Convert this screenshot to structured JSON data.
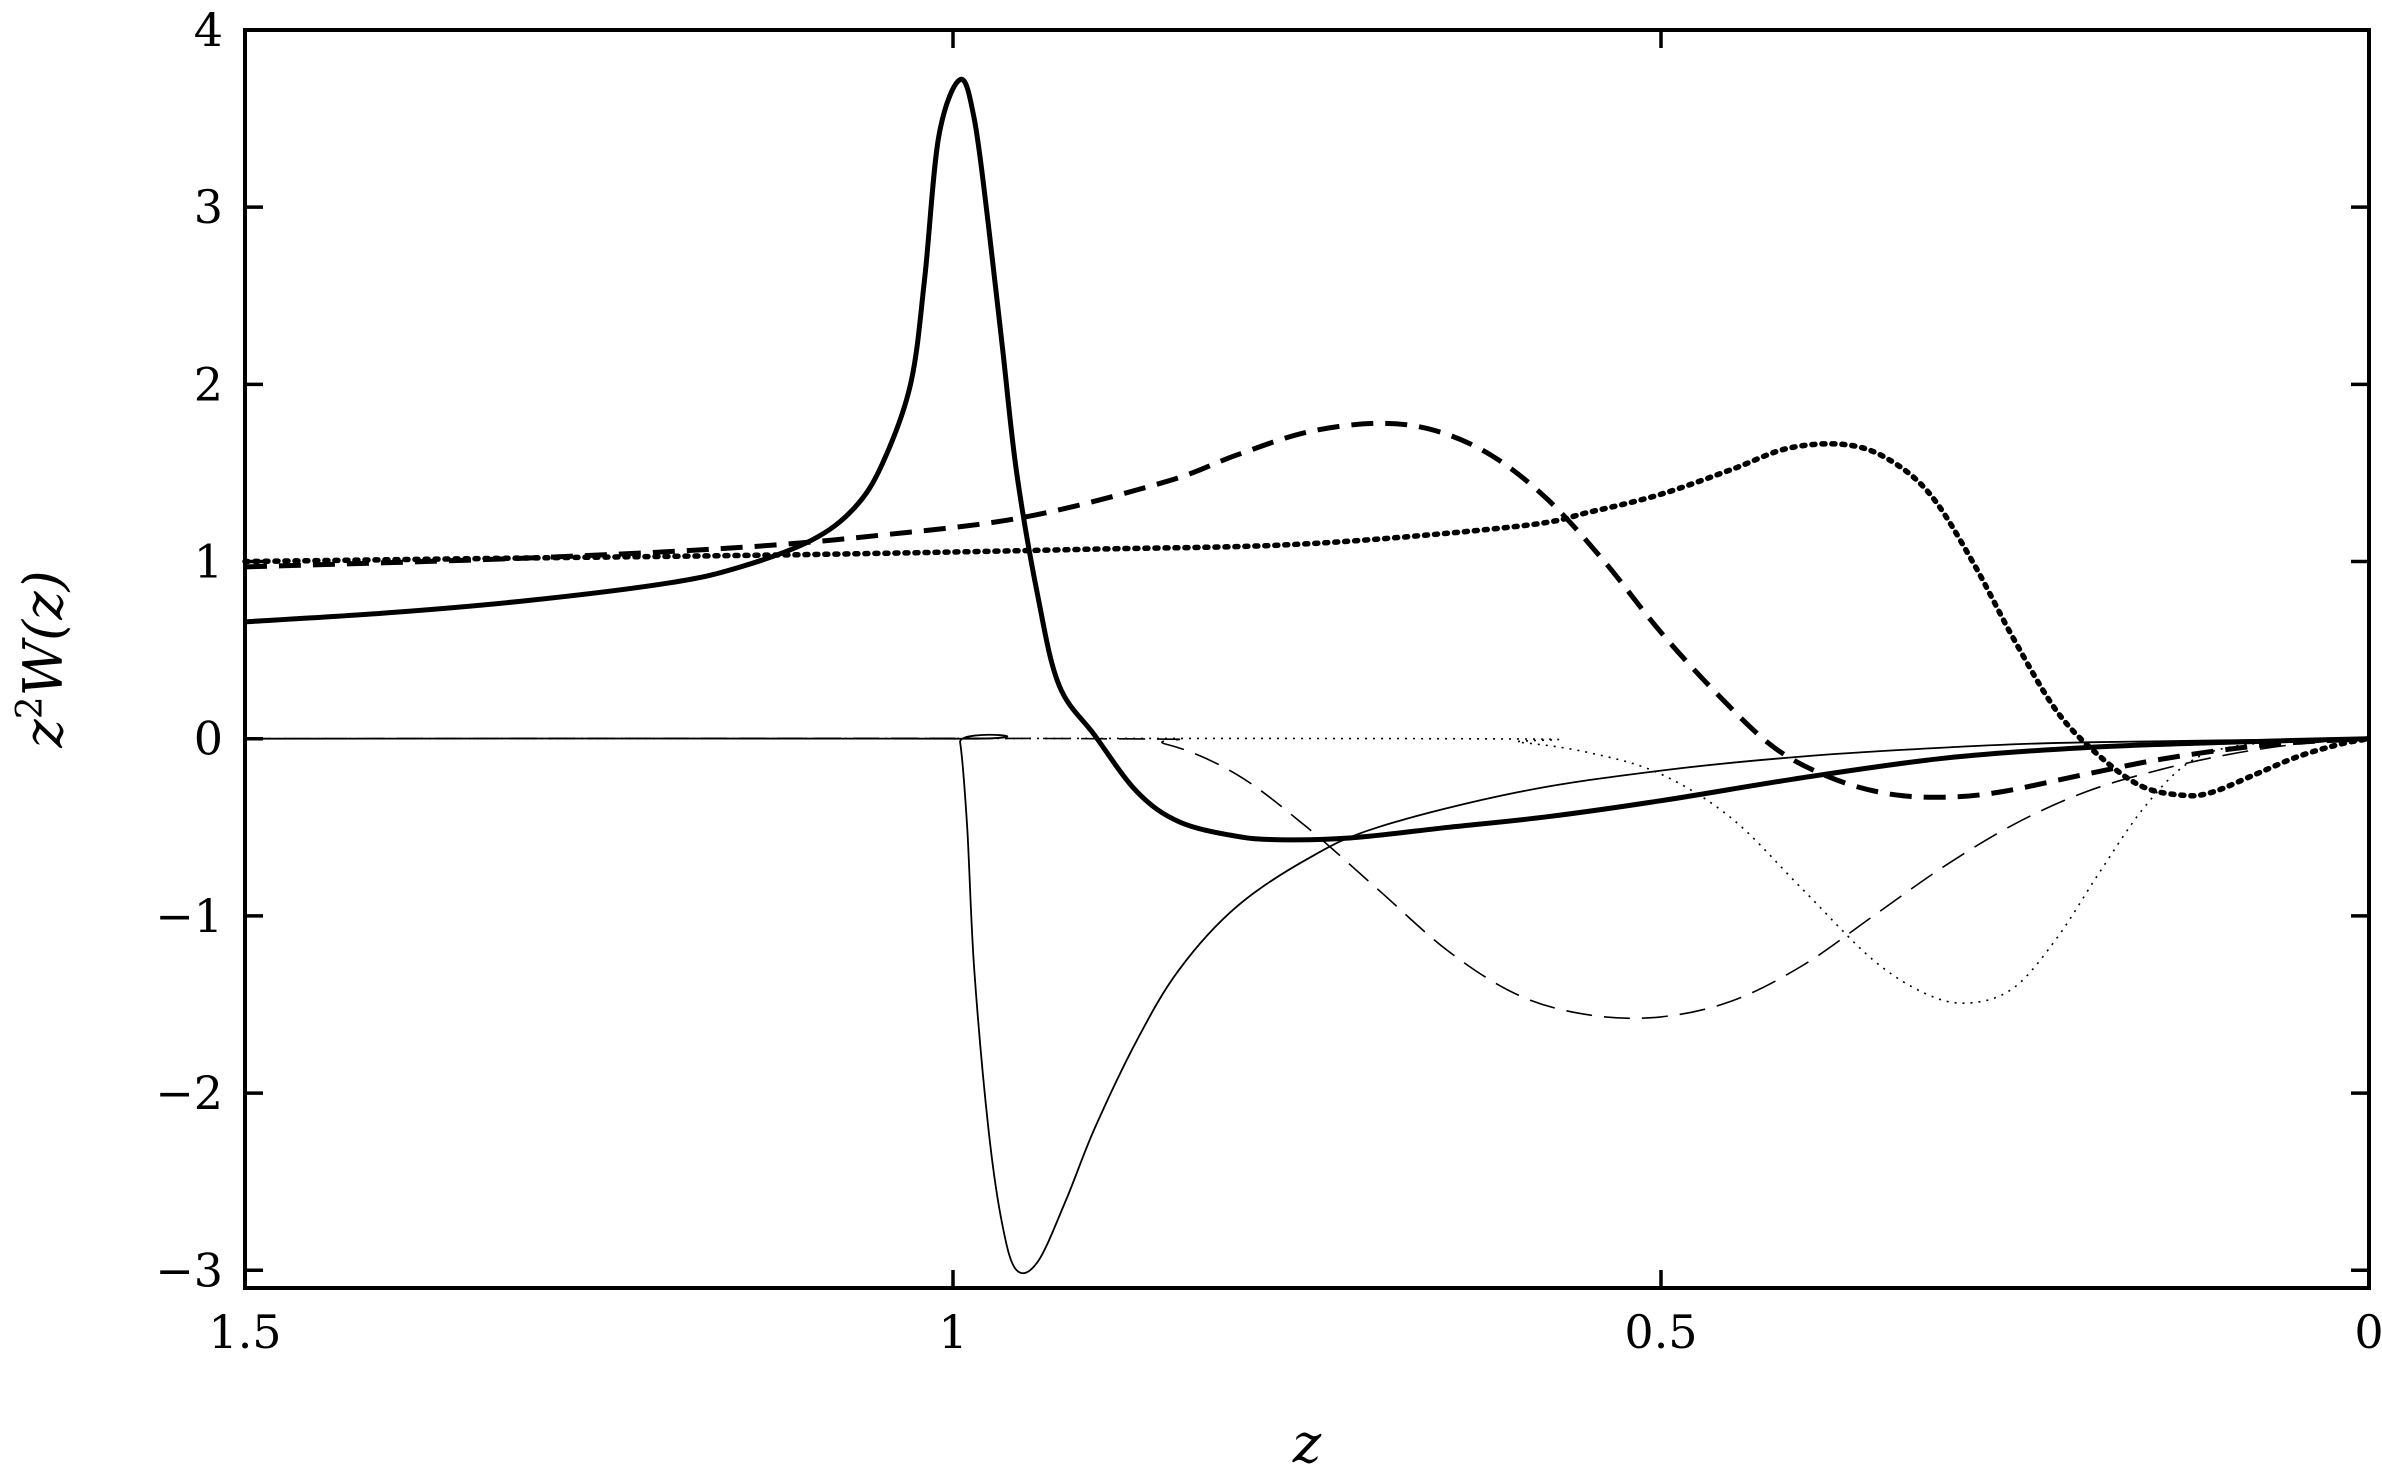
{
  "chart_data": {
    "type": "line",
    "title": "",
    "xlabel": "z",
    "ylabel_base": "z",
    "ylabel_sup": "2",
    "ylabel_rest": "W(z)",
    "xlim": [
      1.5,
      0
    ],
    "ylim": [
      -3.1,
      4.0
    ],
    "x_reversed": true,
    "grid": false,
    "legend": "none",
    "xticks": [
      {
        "value": 1.5,
        "label": "1.5"
      },
      {
        "value": 1,
        "label": "1"
      },
      {
        "value": 0.5,
        "label": "0.5"
      },
      {
        "value": 0,
        "label": "0"
      }
    ],
    "yticks": [
      {
        "value": 4,
        "label": "4"
      },
      {
        "value": 3,
        "label": "3"
      },
      {
        "value": 2,
        "label": "2"
      },
      {
        "value": 1,
        "label": "1"
      },
      {
        "value": 0,
        "label": "0"
      },
      {
        "value": -1,
        "label": "−1"
      },
      {
        "value": -2,
        "label": "−2"
      },
      {
        "value": -3,
        "label": "−3"
      }
    ],
    "series": [
      {
        "style": "thick-solid",
        "points": [
          [
            1.5,
            0.66
          ],
          [
            1.4,
            0.71
          ],
          [
            1.3,
            0.78
          ],
          [
            1.2,
            0.88
          ],
          [
            1.15,
            0.97
          ],
          [
            1.1,
            1.12
          ],
          [
            1.07,
            1.3
          ],
          [
            1.05,
            1.55
          ],
          [
            1.03,
            2.0
          ],
          [
            1.02,
            2.6
          ],
          [
            1.01,
            3.4
          ],
          [
            0.995,
            3.72
          ],
          [
            0.985,
            3.5
          ],
          [
            0.975,
            2.9
          ],
          [
            0.965,
            2.2
          ],
          [
            0.955,
            1.5
          ],
          [
            0.94,
            0.8
          ],
          [
            0.925,
            0.3
          ],
          [
            0.9,
            0.02
          ],
          [
            0.87,
            -0.3
          ],
          [
            0.84,
            -0.47
          ],
          [
            0.8,
            -0.55
          ],
          [
            0.77,
            -0.57
          ],
          [
            0.72,
            -0.56
          ],
          [
            0.65,
            -0.5
          ],
          [
            0.58,
            -0.44
          ],
          [
            0.5,
            -0.35
          ],
          [
            0.4,
            -0.22
          ],
          [
            0.3,
            -0.11
          ],
          [
            0.2,
            -0.05
          ],
          [
            0.1,
            -0.02
          ],
          [
            0.0,
            0.0
          ]
        ]
      },
      {
        "style": "thin-solid",
        "points": [
          [
            1.5,
            0.0
          ],
          [
            1.0,
            0.0
          ],
          [
            0.995,
            -0.02
          ],
          [
            0.99,
            -0.5
          ],
          [
            0.985,
            -1.3
          ],
          [
            0.975,
            -2.2
          ],
          [
            0.965,
            -2.75
          ],
          [
            0.955,
            -3.0
          ],
          [
            0.94,
            -2.95
          ],
          [
            0.92,
            -2.6
          ],
          [
            0.9,
            -2.2
          ],
          [
            0.87,
            -1.7
          ],
          [
            0.84,
            -1.3
          ],
          [
            0.8,
            -0.95
          ],
          [
            0.75,
            -0.68
          ],
          [
            0.7,
            -0.5
          ],
          [
            0.6,
            -0.3
          ],
          [
            0.5,
            -0.18
          ],
          [
            0.4,
            -0.1
          ],
          [
            0.3,
            -0.05
          ],
          [
            0.2,
            -0.02
          ],
          [
            0.0,
            0.0
          ]
        ]
      },
      {
        "style": "thick-dashed",
        "points": [
          [
            1.5,
            0.97
          ],
          [
            1.3,
            1.02
          ],
          [
            1.15,
            1.08
          ],
          [
            1.05,
            1.15
          ],
          [
            0.95,
            1.25
          ],
          [
            0.85,
            1.45
          ],
          [
            0.8,
            1.6
          ],
          [
            0.75,
            1.73
          ],
          [
            0.7,
            1.78
          ],
          [
            0.66,
            1.74
          ],
          [
            0.62,
            1.6
          ],
          [
            0.58,
            1.35
          ],
          [
            0.54,
            1.0
          ],
          [
            0.5,
            0.6
          ],
          [
            0.46,
            0.25
          ],
          [
            0.42,
            -0.05
          ],
          [
            0.38,
            -0.22
          ],
          [
            0.34,
            -0.31
          ],
          [
            0.3,
            -0.33
          ],
          [
            0.26,
            -0.3
          ],
          [
            0.2,
            -0.2
          ],
          [
            0.15,
            -0.12
          ],
          [
            0.1,
            -0.06
          ],
          [
            0.05,
            -0.02
          ],
          [
            0.0,
            0.0
          ]
        ]
      },
      {
        "style": "thin-dashed",
        "points": [
          [
            1.5,
            0.0
          ],
          [
            0.9,
            0.0
          ],
          [
            0.85,
            -0.03
          ],
          [
            0.8,
            -0.2
          ],
          [
            0.75,
            -0.5
          ],
          [
            0.7,
            -0.85
          ],
          [
            0.65,
            -1.2
          ],
          [
            0.6,
            -1.45
          ],
          [
            0.55,
            -1.56
          ],
          [
            0.5,
            -1.57
          ],
          [
            0.45,
            -1.48
          ],
          [
            0.4,
            -1.28
          ],
          [
            0.35,
            -1.0
          ],
          [
            0.3,
            -0.72
          ],
          [
            0.25,
            -0.48
          ],
          [
            0.2,
            -0.3
          ],
          [
            0.15,
            -0.18
          ],
          [
            0.1,
            -0.09
          ],
          [
            0.05,
            -0.03
          ],
          [
            0.0,
            0.0
          ]
        ]
      },
      {
        "style": "thick-dotted",
        "points": [
          [
            1.5,
            1.0
          ],
          [
            1.3,
            1.02
          ],
          [
            1.1,
            1.04
          ],
          [
            0.9,
            1.07
          ],
          [
            0.75,
            1.1
          ],
          [
            0.6,
            1.2
          ],
          [
            0.55,
            1.28
          ],
          [
            0.5,
            1.38
          ],
          [
            0.45,
            1.52
          ],
          [
            0.41,
            1.64
          ],
          [
            0.37,
            1.66
          ],
          [
            0.34,
            1.58
          ],
          [
            0.31,
            1.38
          ],
          [
            0.28,
            1.0
          ],
          [
            0.25,
            0.55
          ],
          [
            0.22,
            0.15
          ],
          [
            0.19,
            -0.1
          ],
          [
            0.16,
            -0.27
          ],
          [
            0.13,
            -0.32
          ],
          [
            0.11,
            -0.3
          ],
          [
            0.08,
            -0.2
          ],
          [
            0.05,
            -0.1
          ],
          [
            0.02,
            -0.03
          ],
          [
            0.0,
            0.0
          ]
        ]
      },
      {
        "style": "thin-dotted",
        "points": [
          [
            1.5,
            0.0
          ],
          [
            0.65,
            0.0
          ],
          [
            0.6,
            -0.02
          ],
          [
            0.55,
            -0.08
          ],
          [
            0.5,
            -0.2
          ],
          [
            0.45,
            -0.45
          ],
          [
            0.4,
            -0.85
          ],
          [
            0.35,
            -1.25
          ],
          [
            0.31,
            -1.45
          ],
          [
            0.28,
            -1.49
          ],
          [
            0.25,
            -1.4
          ],
          [
            0.22,
            -1.12
          ],
          [
            0.19,
            -0.75
          ],
          [
            0.16,
            -0.4
          ],
          [
            0.13,
            -0.15
          ],
          [
            0.1,
            -0.05
          ],
          [
            0.05,
            -0.01
          ],
          [
            0.0,
            0.0
          ]
        ]
      }
    ]
  }
}
